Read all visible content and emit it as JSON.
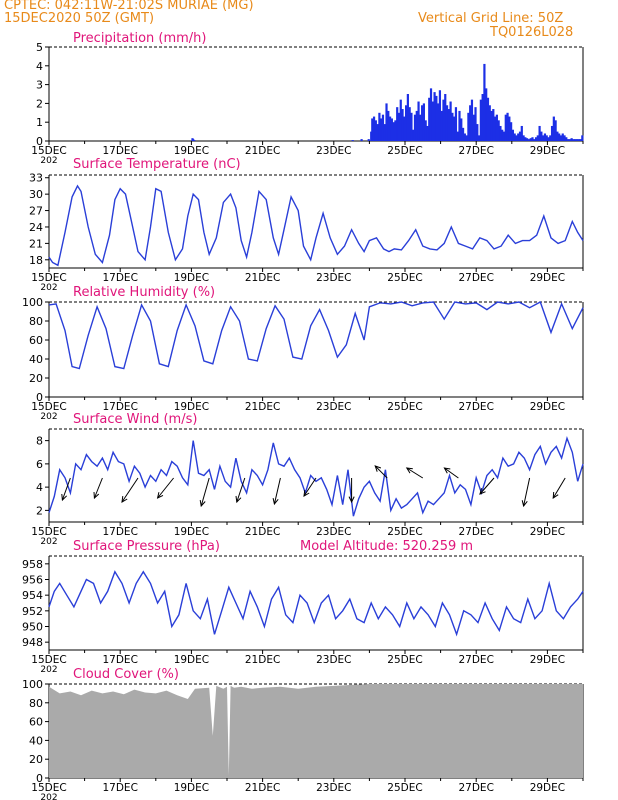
{
  "header": {
    "line1": "CPTEC:   042:11W-21:02S   MURIAE (MG)",
    "line2": "15DEC2020 50Z (GMT)",
    "right1": "Vertical Grid Line: 50Z",
    "right2": "TQ0126L028",
    "colors": {
      "header": "#e88a1a",
      "title": "#e0157a",
      "series": "#2a3fd8",
      "bars": "#1c2fe6",
      "cloud": "#aaaaaa"
    }
  },
  "x_tick_labels": [
    "15DEC",
    "17DEC",
    "19DEC",
    "21DEC",
    "23DEC",
    "25DEC",
    "27DEC",
    "29DEC"
  ],
  "x_year_stub": "202",
  "chart_data": [
    {
      "type": "bar",
      "title": "Precipitation  (mm/h)",
      "ylim": [
        0,
        5
      ],
      "yticks": [
        0,
        1,
        2,
        3,
        4,
        5
      ],
      "xlim": [
        0,
        15
      ],
      "grid": "dashed top border only",
      "x": [
        4.0,
        4.02,
        4.05,
        8.5,
        8.75,
        8.95,
        9.02,
        9.05,
        9.08,
        9.1,
        9.12,
        9.15,
        9.2,
        9.25,
        9.3,
        9.35,
        9.4,
        9.45,
        9.5,
        9.55,
        9.6,
        9.65,
        9.7,
        9.75,
        9.8,
        9.85,
        9.9,
        9.95,
        10.0,
        10.05,
        10.1,
        10.15,
        10.2,
        10.25,
        10.3,
        10.35,
        10.4,
        10.45,
        10.5,
        10.55,
        10.6,
        10.65,
        10.7,
        10.75,
        10.8,
        10.85,
        10.9,
        10.95,
        11.0,
        11.05,
        11.1,
        11.15,
        11.2,
        11.25,
        11.3,
        11.35,
        11.4,
        11.45,
        11.5,
        11.55,
        11.6,
        11.65,
        11.7,
        11.75,
        11.8,
        11.85,
        11.9,
        11.95,
        12.0,
        12.05,
        12.1,
        12.15,
        12.2,
        12.25,
        12.3,
        12.35,
        12.4,
        12.45,
        12.5,
        12.55,
        12.6,
        12.65,
        12.7,
        12.75,
        12.8,
        12.85,
        12.9,
        12.95,
        13.0,
        13.05,
        13.1,
        13.15,
        13.2,
        13.25,
        13.3,
        13.35,
        13.4,
        13.45,
        13.5,
        13.55,
        13.6,
        13.65,
        13.7,
        13.75,
        13.8,
        13.85,
        13.9,
        13.95,
        14.0,
        14.05,
        14.1,
        14.15,
        14.2,
        14.25,
        14.3,
        14.35,
        14.4,
        14.45,
        14.5,
        14.55,
        14.6,
        14.65,
        14.7,
        14.75,
        14.8,
        14.85,
        14.9,
        14.95
      ],
      "values": [
        0.15,
        0.1,
        0.05,
        0.05,
        0.1,
        0.1,
        0.5,
        1.2,
        0.8,
        1.3,
        0.6,
        1.1,
        0.9,
        1.5,
        1.2,
        1.4,
        0.9,
        2.0,
        1.6,
        1.3,
        1.2,
        1.0,
        1.1,
        1.8,
        1.5,
        2.2,
        1.7,
        1.3,
        1.9,
        2.5,
        1.8,
        1.5,
        0.6,
        1.4,
        1.6,
        2.1,
        1.4,
        1.9,
        2.0,
        1.1,
        0.8,
        2.3,
        2.8,
        2.1,
        2.6,
        2.4,
        2.0,
        2.7,
        1.6,
        2.2,
        2.5,
        1.9,
        1.7,
        2.1,
        1.5,
        1.3,
        1.8,
        0.5,
        1.6,
        1.2,
        0.7,
        0.4,
        0.3,
        1.5,
        1.9,
        2.2,
        1.4,
        1.8,
        0.9,
        0.3,
        2.2,
        2.5,
        4.1,
        2.8,
        2.3,
        1.9,
        1.6,
        1.7,
        1.3,
        1.4,
        1.1,
        0.8,
        0.6,
        0.5,
        1.4,
        1.5,
        1.3,
        1.0,
        0.6,
        0.4,
        0.3,
        0.4,
        0.5,
        0.8,
        0.3,
        0.2,
        0.15,
        0.1,
        0.15,
        0.2,
        0.1,
        0.2,
        0.3,
        0.8,
        0.5,
        0.3,
        0.4,
        0.3,
        0.2,
        0.3,
        0.8,
        1.3,
        1.1,
        0.5,
        0.4,
        0.3,
        0.4,
        0.3,
        0.2,
        0.1,
        0.1,
        0.15,
        0.1,
        0.1,
        0.1,
        0.1,
        0.1,
        0.3
      ]
    },
    {
      "type": "line",
      "title": "Surface Temperature (nC)",
      "ylim": [
        16.5,
        33.5
      ],
      "yticks": [
        18,
        21,
        24,
        27,
        30,
        33
      ],
      "xlim": [
        0,
        15
      ],
      "x": [
        0,
        0.1,
        0.25,
        0.45,
        0.65,
        0.8,
        0.9,
        1.1,
        1.3,
        1.5,
        1.7,
        1.85,
        2.0,
        2.15,
        2.3,
        2.5,
        2.7,
        2.85,
        3.0,
        3.15,
        3.35,
        3.55,
        3.75,
        3.9,
        4.05,
        4.2,
        4.35,
        4.5,
        4.7,
        4.9,
        5.1,
        5.25,
        5.4,
        5.55,
        5.7,
        5.9,
        6.1,
        6.3,
        6.45,
        6.6,
        6.8,
        7.0,
        7.15,
        7.35,
        7.5,
        7.7,
        7.9,
        8.1,
        8.3,
        8.5,
        8.7,
        8.85,
        9.0,
        9.2,
        9.4,
        9.55,
        9.7,
        9.9,
        10.1,
        10.3,
        10.5,
        10.7,
        10.9,
        11.1,
        11.3,
        11.5,
        11.7,
        11.9,
        12.1,
        12.3,
        12.5,
        12.7,
        12.9,
        13.1,
        13.3,
        13.5,
        13.7,
        13.9,
        14.1,
        14.3,
        14.5,
        14.7,
        14.85,
        15.0
      ],
      "values": [
        18.5,
        17.5,
        17.0,
        23.0,
        29.5,
        31.5,
        30.5,
        24.0,
        19.0,
        17.5,
        22.5,
        29.0,
        31.0,
        30.0,
        25.5,
        19.5,
        18.0,
        24.0,
        31.0,
        30.5,
        23.0,
        18.0,
        20.0,
        26.0,
        30.0,
        29.0,
        23.0,
        19.0,
        22.0,
        28.5,
        30.0,
        27.5,
        21.5,
        18.5,
        23.0,
        30.5,
        29.0,
        22.0,
        19.0,
        23.5,
        29.5,
        27.0,
        20.5,
        18.0,
        22.0,
        26.5,
        22.0,
        19.0,
        20.5,
        23.5,
        21.0,
        19.5,
        21.5,
        22.0,
        20.0,
        19.5,
        20.0,
        19.8,
        21.5,
        23.5,
        20.5,
        20.0,
        19.8,
        21.0,
        24.0,
        21.0,
        20.5,
        20.0,
        22.0,
        21.5,
        20.0,
        20.5,
        22.5,
        21.0,
        21.5,
        21.5,
        22.5,
        26.0,
        22.0,
        21.0,
        21.5,
        25.0,
        23.0,
        21.5
      ]
    },
    {
      "type": "line",
      "title": "Relative Humidity (%)",
      "ylim": [
        0,
        100
      ],
      "yticks": [
        0,
        20,
        40,
        60,
        80,
        100
      ],
      "xlim": [
        0,
        15
      ],
      "x": [
        0,
        0.2,
        0.45,
        0.65,
        0.85,
        1.1,
        1.35,
        1.6,
        1.85,
        2.1,
        2.35,
        2.6,
        2.85,
        3.1,
        3.35,
        3.6,
        3.85,
        4.1,
        4.35,
        4.6,
        4.85,
        5.1,
        5.35,
        5.6,
        5.85,
        6.1,
        6.35,
        6.6,
        6.85,
        7.1,
        7.35,
        7.6,
        7.85,
        8.1,
        8.35,
        8.6,
        8.85,
        9.0,
        9.3,
        9.6,
        9.9,
        10.2,
        10.5,
        10.8,
        11.1,
        11.4,
        11.7,
        12.0,
        12.3,
        12.6,
        12.9,
        13.2,
        13.5,
        13.8,
        14.1,
        14.4,
        14.7,
        15.0
      ],
      "values": [
        97,
        98,
        70,
        32,
        30,
        65,
        95,
        72,
        32,
        30,
        65,
        97,
        80,
        35,
        32,
        70,
        97,
        75,
        38,
        35,
        70,
        95,
        80,
        40,
        38,
        72,
        96,
        82,
        42,
        40,
        75,
        92,
        70,
        42,
        55,
        88,
        60,
        95,
        99,
        98,
        100,
        96,
        99,
        100,
        82,
        100,
        98,
        99,
        92,
        100,
        98,
        100,
        94,
        100,
        68,
        98,
        72,
        94
      ]
    },
    {
      "type": "line",
      "title": "Surface Wind (m/s)",
      "ylim": [
        1,
        9
      ],
      "yticks": [
        2,
        4,
        6,
        8
      ],
      "xlim": [
        0,
        15
      ],
      "x": [
        0,
        0.15,
        0.3,
        0.45,
        0.6,
        0.75,
        0.9,
        1.05,
        1.2,
        1.35,
        1.5,
        1.65,
        1.8,
        1.95,
        2.1,
        2.25,
        2.4,
        2.55,
        2.7,
        2.85,
        3.0,
        3.15,
        3.3,
        3.45,
        3.6,
        3.75,
        3.9,
        4.05,
        4.2,
        4.35,
        4.5,
        4.65,
        4.8,
        4.95,
        5.1,
        5.25,
        5.4,
        5.55,
        5.7,
        5.85,
        6.0,
        6.15,
        6.3,
        6.45,
        6.6,
        6.75,
        6.9,
        7.05,
        7.2,
        7.35,
        7.5,
        7.65,
        7.8,
        7.95,
        8.1,
        8.25,
        8.4,
        8.55,
        8.7,
        8.85,
        9.0,
        9.15,
        9.3,
        9.45,
        9.6,
        9.75,
        9.9,
        10.05,
        10.2,
        10.35,
        10.5,
        10.65,
        10.8,
        10.95,
        11.1,
        11.25,
        11.4,
        11.55,
        11.7,
        11.85,
        12.0,
        12.15,
        12.3,
        12.45,
        12.6,
        12.75,
        12.9,
        13.05,
        13.2,
        13.35,
        13.5,
        13.65,
        13.8,
        13.95,
        14.1,
        14.25,
        14.4,
        14.55,
        14.7,
        14.85,
        15.0
      ],
      "values": [
        1.8,
        3.2,
        5.5,
        4.8,
        3.5,
        6.0,
        5.5,
        6.8,
        6.2,
        5.8,
        6.5,
        5.5,
        7.0,
        6.2,
        6.0,
        4.5,
        5.8,
        5.2,
        4.0,
        5.0,
        4.5,
        5.5,
        5.0,
        6.2,
        5.8,
        4.8,
        4.2,
        8.0,
        5.2,
        5.0,
        5.5,
        3.8,
        5.8,
        4.5,
        4.0,
        6.5,
        4.5,
        3.5,
        5.5,
        5.0,
        4.2,
        5.5,
        7.8,
        6.0,
        5.8,
        6.5,
        5.5,
        4.8,
        3.5,
        5.0,
        4.5,
        4.8,
        3.8,
        2.5,
        5.0,
        2.5,
        5.5,
        1.5,
        3.0,
        4.0,
        4.5,
        3.5,
        2.8,
        5.5,
        2.0,
        3.0,
        2.2,
        2.5,
        3.0,
        3.5,
        1.8,
        2.8,
        2.5,
        3.0,
        3.5,
        5.0,
        3.5,
        4.2,
        3.8,
        2.5,
        4.8,
        3.5,
        5.0,
        5.5,
        4.8,
        6.5,
        5.8,
        6.0,
        7.0,
        6.5,
        5.5,
        6.8,
        7.5,
        6.0,
        7.0,
        7.5,
        6.5,
        8.2,
        7.0,
        4.5,
        6.0
      ],
      "barbs": [
        {
          "x": 0.6,
          "dx": -0.2,
          "dy": 1.1
        },
        {
          "x": 1.5,
          "dx": -0.2,
          "dy": 1.0
        },
        {
          "x": 2.5,
          "dx": -0.4,
          "dy": 1.2
        },
        {
          "x": 3.5,
          "dx": -0.4,
          "dy": 1.0
        },
        {
          "x": 4.5,
          "dx": -0.2,
          "dy": 1.4
        },
        {
          "x": 5.5,
          "dx": -0.2,
          "dy": 1.2
        },
        {
          "x": 6.5,
          "dx": -0.15,
          "dy": 1.3
        },
        {
          "x": 7.5,
          "dx": -0.3,
          "dy": 0.9
        },
        {
          "x": 8.5,
          "dx": 0.0,
          "dy": 1.2
        },
        {
          "x": 9.5,
          "dx": -0.3,
          "dy": -0.6
        },
        {
          "x": 10.5,
          "dx": -0.4,
          "dy": -0.5
        },
        {
          "x": 11.5,
          "dx": -0.35,
          "dy": -0.5
        },
        {
          "x": 12.5,
          "dx": -0.35,
          "dy": 0.8
        },
        {
          "x": 13.5,
          "dx": -0.15,
          "dy": 1.4
        },
        {
          "x": 14.5,
          "dx": -0.3,
          "dy": 1.0
        }
      ]
    },
    {
      "type": "line",
      "title": "Surface Pressure (hPa)",
      "annotation": "Model Altitude: 520.259  m",
      "ylim": [
        947,
        959
      ],
      "yticks": [
        948,
        950,
        952,
        954,
        956,
        958
      ],
      "xlim": [
        0,
        15
      ],
      "x": [
        0,
        0.15,
        0.3,
        0.5,
        0.7,
        0.9,
        1.05,
        1.25,
        1.45,
        1.65,
        1.85,
        2.05,
        2.25,
        2.45,
        2.65,
        2.85,
        3.05,
        3.25,
        3.45,
        3.65,
        3.85,
        4.05,
        4.25,
        4.45,
        4.65,
        4.85,
        5.05,
        5.25,
        5.45,
        5.65,
        5.85,
        6.05,
        6.25,
        6.45,
        6.65,
        6.85,
        7.05,
        7.25,
        7.45,
        7.65,
        7.85,
        8.05,
        8.25,
        8.45,
        8.65,
        8.85,
        9.05,
        9.25,
        9.45,
        9.65,
        9.85,
        10.05,
        10.25,
        10.45,
        10.65,
        10.85,
        11.05,
        11.25,
        11.45,
        11.65,
        11.85,
        12.05,
        12.25,
        12.45,
        12.65,
        12.85,
        13.05,
        13.25,
        13.45,
        13.65,
        13.85,
        14.05,
        14.25,
        14.45,
        14.65,
        14.85,
        15.0
      ],
      "values": [
        952.5,
        954.5,
        955.5,
        954.0,
        952.5,
        954.5,
        956.0,
        955.5,
        953.0,
        954.5,
        957.0,
        955.5,
        953.0,
        955.5,
        957.0,
        955.5,
        953.0,
        954.5,
        950.0,
        951.5,
        955.5,
        952.0,
        951.0,
        953.5,
        949.0,
        952.0,
        955.0,
        953.0,
        951.0,
        954.5,
        952.5,
        950.0,
        953.5,
        955.0,
        951.5,
        950.5,
        954.0,
        953.0,
        950.5,
        953.0,
        954.0,
        951.0,
        952.0,
        953.5,
        951.0,
        950.5,
        953.0,
        951.0,
        952.5,
        951.5,
        950.0,
        953.0,
        951.0,
        952.5,
        951.5,
        950.0,
        953.0,
        951.5,
        949.0,
        952.0,
        951.5,
        950.5,
        953.0,
        951.0,
        949.5,
        952.5,
        951.0,
        950.5,
        953.5,
        951.0,
        952.0,
        955.5,
        952.0,
        951.0,
        952.5,
        953.5,
        954.5
      ]
    },
    {
      "type": "area",
      "title": "Cloud Cover (%)",
      "ylim": [
        0,
        100
      ],
      "yticks": [
        0,
        20,
        40,
        60,
        80,
        100
      ],
      "xlim": [
        0,
        15
      ],
      "x": [
        0,
        0.3,
        0.6,
        0.9,
        1.2,
        1.5,
        1.8,
        2.1,
        2.4,
        2.7,
        3.0,
        3.3,
        3.6,
        3.9,
        4.1,
        4.5,
        4.6,
        4.7,
        4.9,
        5.0,
        5.05,
        5.1,
        5.2,
        5.4,
        5.7,
        6.0,
        6.5,
        7.0,
        7.5,
        8.0,
        8.5,
        9.0,
        10.0,
        11.0,
        12.0,
        13.0,
        14.0,
        15.0
      ],
      "values": [
        97,
        90,
        92,
        88,
        93,
        90,
        92,
        89,
        94,
        91,
        90,
        93,
        88,
        84,
        95,
        96,
        45,
        98,
        95,
        97,
        3,
        98,
        96,
        97,
        95,
        96,
        97,
        95,
        97,
        98,
        99,
        100,
        100,
        100,
        100,
        100,
        100,
        100
      ]
    }
  ]
}
